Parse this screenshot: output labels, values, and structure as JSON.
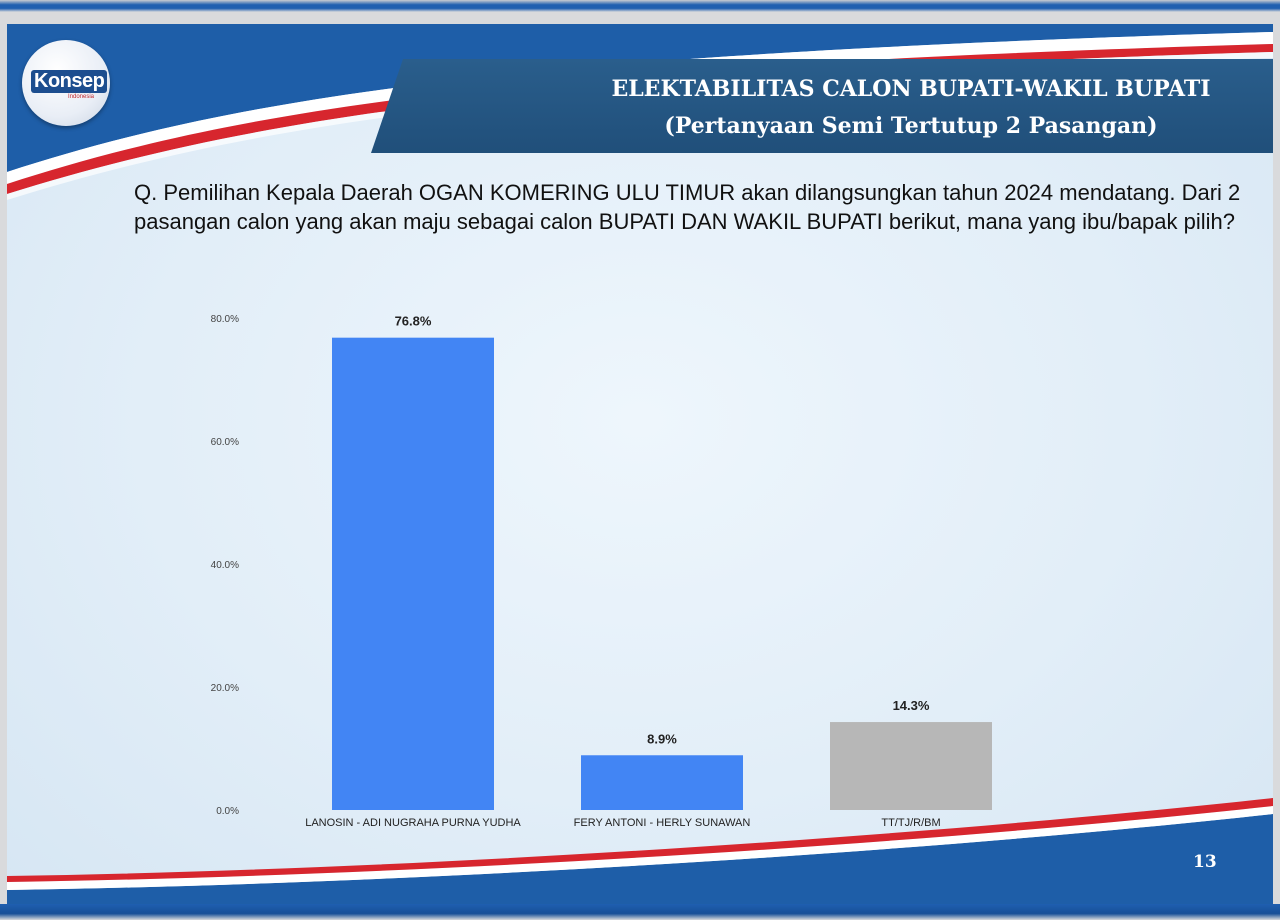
{
  "brand": {
    "logo_text": "Konsep",
    "logo_subtext": "Indonesia",
    "colors": {
      "navy": "#204f7a",
      "red": "#d7262e",
      "blue": "#1f5fb0"
    }
  },
  "slide": {
    "title_line1": "ELEKTABILITAS CALON BUPATI-WAKIL BUPATI",
    "title_line2": "(Pertanyaan Semi Tertutup 2 Pasangan)",
    "question": "Q. Pemilihan Kepala Daerah OGAN KOMERING ULU TIMUR akan dilangsungkan tahun 2024 mendatang. Dari 2 pasangan calon yang akan maju sebagai calon BUPATI DAN WAKIL BUPATI berikut, mana yang ibu/bapak pilih?",
    "page_number": "13"
  },
  "chart_data": {
    "type": "bar",
    "categories": [
      "LANOSIN - ADI NUGRAHA PURNA YUDHA",
      "FERY ANTONI - HERLY SUNAWAN",
      "TT/TJ/R/BM"
    ],
    "values": [
      76.8,
      8.9,
      14.3
    ],
    "data_labels": [
      "76.8%",
      "8.9%",
      "14.3%"
    ],
    "bar_colors": [
      "#4285f4",
      "#4285f4",
      "#b7b7b7"
    ],
    "ylim": [
      0,
      80
    ],
    "yticks": [
      0,
      20,
      40,
      60,
      80
    ],
    "ytick_labels": [
      "0.0%",
      "20.0%",
      "40.0%",
      "60.0%",
      "80.0%"
    ],
    "grid": false,
    "legend": "none"
  }
}
